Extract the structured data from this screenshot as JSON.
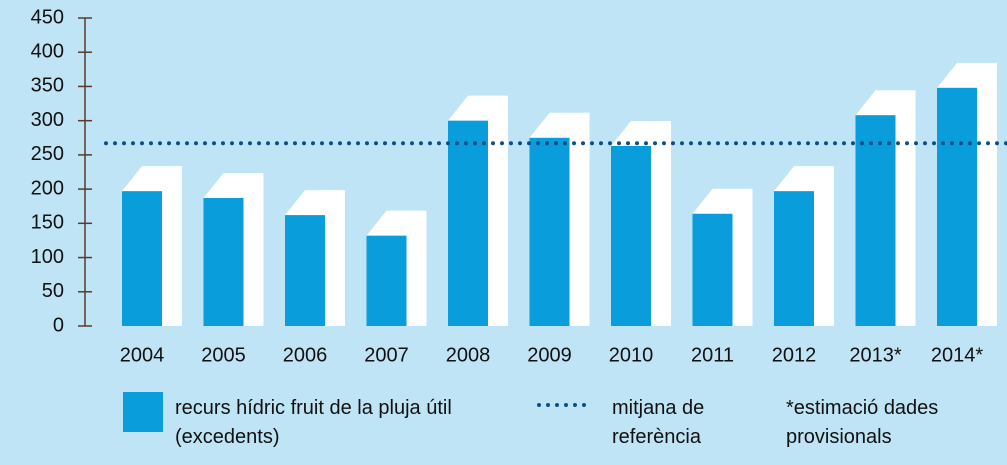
{
  "chart_data": {
    "type": "bar",
    "categories": [
      "2004",
      "2005",
      "2006",
      "2007",
      "2008",
      "2009",
      "2010",
      "2011",
      "2012",
      "2013*",
      "2014*"
    ],
    "series": [
      {
        "name": "recurs hídric fruit de la pluja útil (excedents)",
        "color": "#0a9ddb",
        "values": [
          197,
          187,
          162,
          132,
          300,
          275,
          263,
          164,
          197,
          308,
          348
        ]
      }
    ],
    "reference_line": {
      "name": "mitjana de referència",
      "value": 267,
      "color": "#0b4f8a"
    },
    "note": "*estimació dades provisionals",
    "ylim": [
      0,
      450
    ],
    "yticks": [
      0,
      50,
      100,
      150,
      200,
      250,
      300,
      350,
      400,
      450
    ]
  }
}
